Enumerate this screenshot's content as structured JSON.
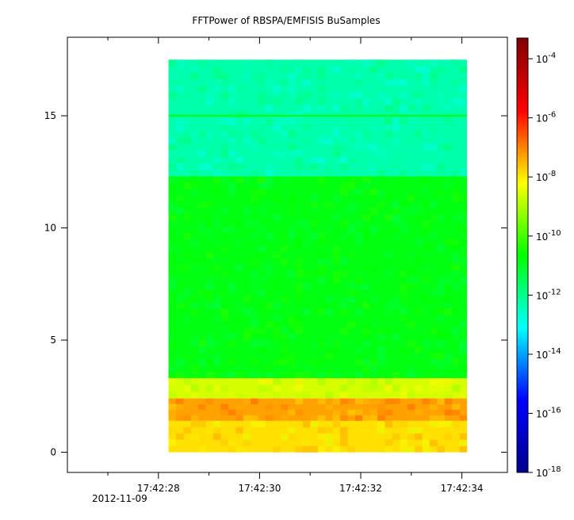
{
  "chart_data": {
    "type": "heatmap",
    "title": "FFTPower of RBSPA/EMFISIS  BuSamples",
    "xlabel": "",
    "ylabel": "",
    "x_ticks": [
      "17:42:28",
      "17:42:30",
      "17:42:32",
      "17:42:34"
    ],
    "x_tick_values_s": [
      28,
      30,
      32,
      34
    ],
    "date_label": "2012-11-09",
    "xlim_s": [
      26.2,
      34.9
    ],
    "data_x_range_s": [
      28.2,
      34.1
    ],
    "y_ticks": [
      "0",
      "5",
      "10",
      "15"
    ],
    "y_tick_values": [
      0,
      5,
      10,
      15
    ],
    "ylim": [
      -0.9,
      18.5
    ],
    "data_y_range": [
      0,
      17.5
    ],
    "colorbar": {
      "scale": "log",
      "range_exp": [
        -18,
        -3.3
      ],
      "tick_exps": [
        -18,
        -16,
        -14,
        -12,
        -10,
        -8,
        -6,
        -4
      ],
      "colormap": [
        "#00008f",
        "#0000ff",
        "#00ffff",
        "#00ff00",
        "#ffff00",
        "#ff0000",
        "#7f0000"
      ]
    },
    "bands": [
      {
        "y_from": 12.3,
        "y_to": 17.5,
        "log_power": -12.3
      },
      {
        "y_from": 3.3,
        "y_to": 12.3,
        "log_power": -10.8
      },
      {
        "y_from": 2.4,
        "y_to": 3.3,
        "log_power": -8.6
      },
      {
        "y_from": 1.4,
        "y_to": 2.4,
        "log_power": -7.3
      },
      {
        "y_from": 0,
        "y_to": 1.4,
        "log_power": -7.9
      }
    ],
    "lines": [
      {
        "y": 15.0,
        "log_power": -10.6
      }
    ]
  }
}
